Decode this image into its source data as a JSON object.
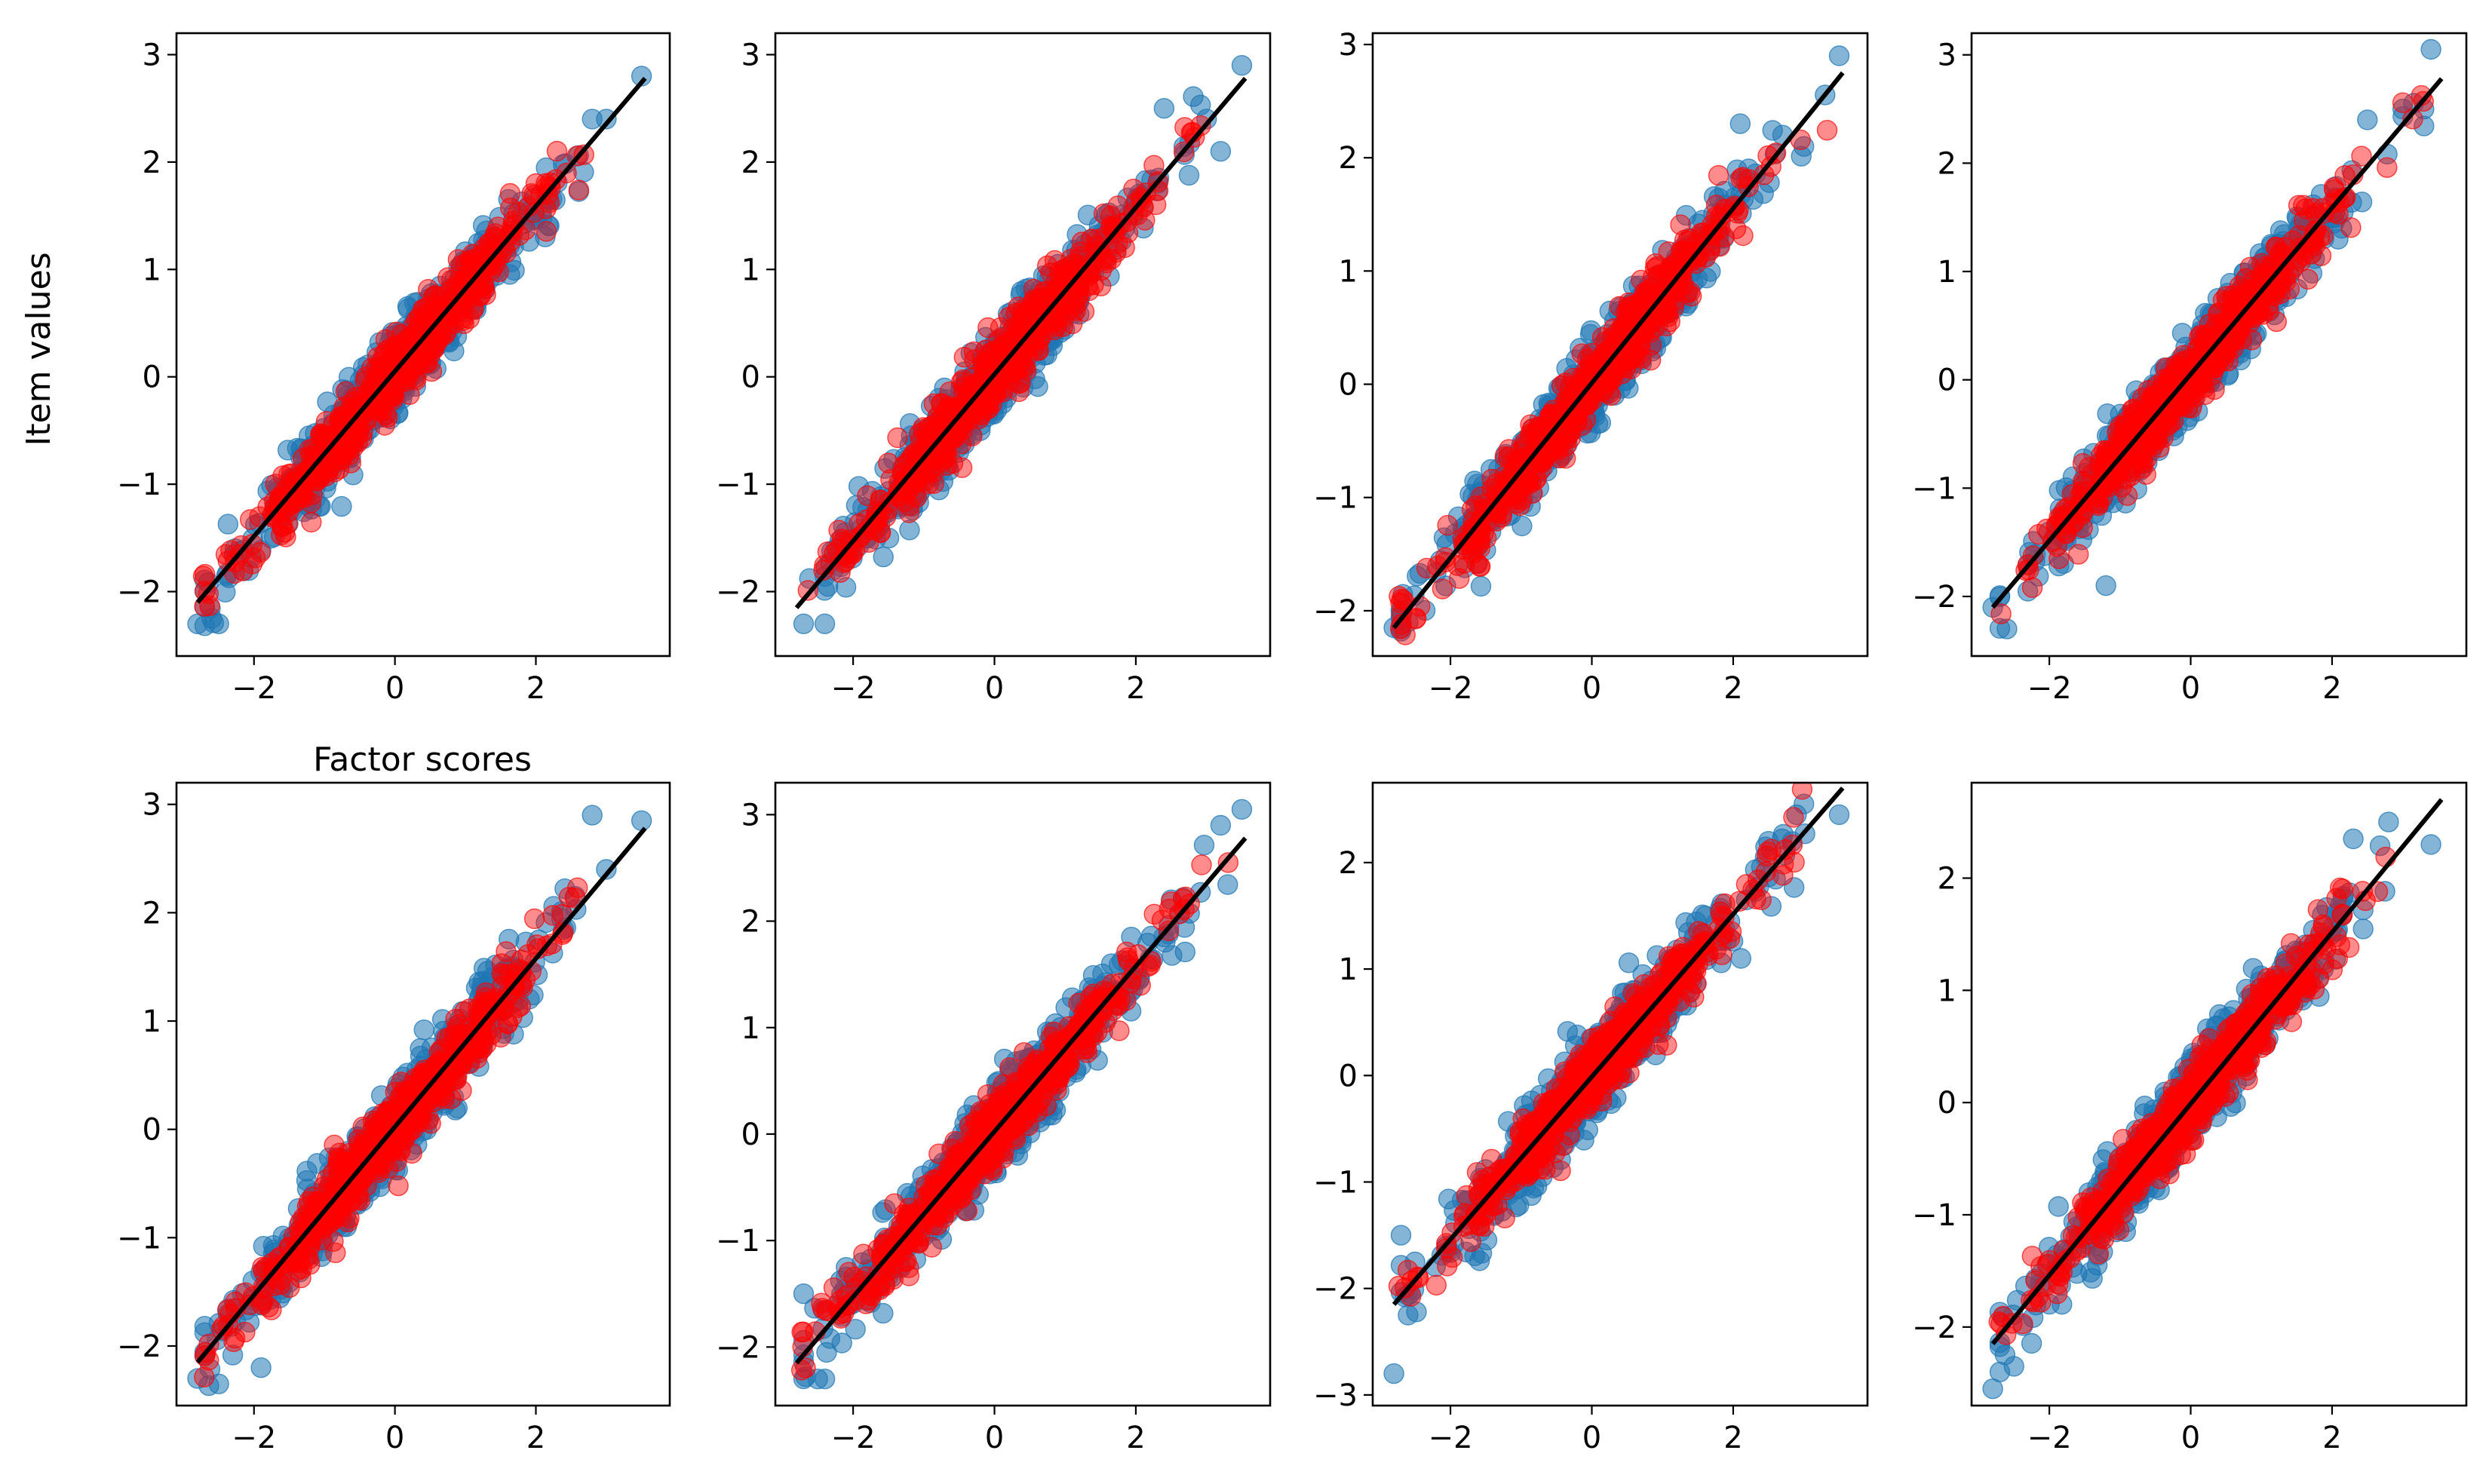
{
  "figure": {
    "ylabel": "Item values",
    "xlabel": "Factor scores"
  },
  "colors": {
    "observed": "#1f77b4",
    "reconstructed": "#ff0000",
    "fit_line": "#000000"
  },
  "chart_data": [
    {
      "type": "scatter",
      "title": "",
      "xlabel": "Factor scores",
      "ylabel": "Item values",
      "xlim": [
        -3.1,
        3.9
      ],
      "ylim": [
        -2.6,
        3.2
      ],
      "xticks": [
        -2,
        0,
        2
      ],
      "yticks": [
        -2,
        -1,
        0,
        1,
        2,
        3
      ],
      "grid": false,
      "legend": "none",
      "fit": {
        "x": [
          -2.8,
          3.55
        ],
        "y": [
          -2.1,
          2.78
        ]
      },
      "n_points": 650,
      "extremes": {
        "x": [
          -2.8,
          -2.6,
          -2.5,
          2.8,
          3.0,
          3.5
        ],
        "y": [
          -2.3,
          -2.25,
          -2.3,
          2.4,
          2.4,
          2.8
        ]
      }
    },
    {
      "type": "scatter",
      "title": "",
      "xlabel": "",
      "ylabel": "",
      "xlim": [
        -3.1,
        3.9
      ],
      "ylim": [
        -2.6,
        3.2
      ],
      "xticks": [
        -2,
        0,
        2
      ],
      "yticks": [
        -2,
        -1,
        0,
        1,
        2,
        3
      ],
      "grid": false,
      "legend": "none",
      "fit": {
        "x": [
          -2.8,
          3.55
        ],
        "y": [
          -2.15,
          2.78
        ]
      },
      "n_points": 650,
      "extremes": {
        "x": [
          -2.7,
          -2.4,
          2.4,
          3.0,
          3.2,
          3.5
        ],
        "y": [
          -2.3,
          -2.3,
          2.5,
          2.4,
          2.1,
          2.9
        ]
      }
    },
    {
      "type": "scatter",
      "title": "",
      "xlabel": "",
      "ylabel": "",
      "xlim": [
        -3.1,
        3.9
      ],
      "ylim": [
        -2.4,
        3.1
      ],
      "xticks": [
        -2,
        0,
        2
      ],
      "yticks": [
        -2,
        -1,
        0,
        1,
        2,
        3
      ],
      "grid": false,
      "legend": "none",
      "fit": {
        "x": [
          -2.8,
          3.55
        ],
        "y": [
          -2.15,
          2.75
        ]
      },
      "n_points": 650,
      "extremes": {
        "x": [
          -2.8,
          -2.6,
          2.1,
          2.7,
          3.0,
          3.5
        ],
        "y": [
          -2.15,
          -2.1,
          2.3,
          2.2,
          2.1,
          2.9
        ]
      }
    },
    {
      "type": "scatter",
      "title": "",
      "xlabel": "",
      "ylabel": "",
      "xlim": [
        -3.1,
        3.9
      ],
      "ylim": [
        -2.55,
        3.2
      ],
      "xticks": [
        -2,
        0,
        2
      ],
      "yticks": [
        -2,
        -1,
        0,
        1,
        2,
        3
      ],
      "grid": false,
      "legend": "none",
      "fit": {
        "x": [
          -2.8,
          3.55
        ],
        "y": [
          -2.1,
          2.78
        ]
      },
      "n_points": 650,
      "extremes": {
        "x": [
          -2.8,
          -2.6,
          -1.2,
          2.5,
          3.0,
          3.4
        ],
        "y": [
          -2.1,
          -2.3,
          -1.9,
          2.4,
          2.5,
          3.05
        ]
      }
    },
    {
      "type": "scatter",
      "title": "",
      "xlabel": "",
      "ylabel": "",
      "xlim": [
        -3.1,
        3.9
      ],
      "ylim": [
        -2.55,
        3.2
      ],
      "xticks": [
        -2,
        0,
        2
      ],
      "yticks": [
        -2,
        -1,
        0,
        1,
        2,
        3
      ],
      "grid": false,
      "legend": "none",
      "fit": {
        "x": [
          -2.8,
          3.55
        ],
        "y": [
          -2.15,
          2.78
        ]
      },
      "n_points": 650,
      "extremes": {
        "x": [
          -2.8,
          -2.5,
          -1.9,
          2.8,
          3.0,
          3.5
        ],
        "y": [
          -2.3,
          -2.35,
          -2.2,
          2.9,
          2.4,
          2.85
        ]
      }
    },
    {
      "type": "scatter",
      "title": "",
      "xlabel": "",
      "ylabel": "",
      "xlim": [
        -3.1,
        3.9
      ],
      "ylim": [
        -2.55,
        3.3
      ],
      "xticks": [
        -2,
        0,
        2
      ],
      "yticks": [
        -2,
        -1,
        0,
        1,
        2,
        3
      ],
      "grid": false,
      "legend": "none",
      "fit": {
        "x": [
          -2.8,
          3.55
        ],
        "y": [
          -2.15,
          2.78
        ]
      },
      "n_points": 650,
      "extremes": {
        "x": [
          -2.7,
          -2.5,
          -2.4,
          2.5,
          3.2,
          3.5
        ],
        "y": [
          -1.5,
          -2.3,
          -2.3,
          2.2,
          2.9,
          3.05
        ]
      }
    },
    {
      "type": "scatter",
      "title": "",
      "xlabel": "",
      "ylabel": "",
      "xlim": [
        -3.1,
        3.9
      ],
      "ylim": [
        -3.1,
        2.75
      ],
      "xticks": [
        -2,
        0,
        2
      ],
      "yticks": [
        -3,
        -2,
        -1,
        0,
        1,
        2
      ],
      "grid": false,
      "legend": "none",
      "fit": {
        "x": [
          -2.8,
          3.55
        ],
        "y": [
          -2.15,
          2.7
        ]
      },
      "n_points": 650,
      "extremes": {
        "x": [
          -2.8,
          -2.7,
          -2.6,
          2.5,
          3.0,
          3.5
        ],
        "y": [
          -2.8,
          -1.5,
          -2.25,
          2.2,
          2.55,
          2.45
        ]
      }
    },
    {
      "type": "scatter",
      "title": "",
      "xlabel": "",
      "ylabel": "",
      "xlim": [
        -3.1,
        3.9
      ],
      "ylim": [
        -2.7,
        2.85
      ],
      "xticks": [
        -2,
        0,
        2
      ],
      "yticks": [
        -2,
        -1,
        0,
        1,
        2
      ],
      "grid": false,
      "legend": "none",
      "fit": {
        "x": [
          -2.8,
          3.55
        ],
        "y": [
          -2.15,
          2.7
        ]
      },
      "n_points": 650,
      "extremes": {
        "x": [
          -2.8,
          -2.7,
          -2.5,
          2.3,
          2.8,
          3.4
        ],
        "y": [
          -2.55,
          -2.4,
          -2.35,
          2.35,
          2.5,
          2.3
        ]
      }
    }
  ]
}
